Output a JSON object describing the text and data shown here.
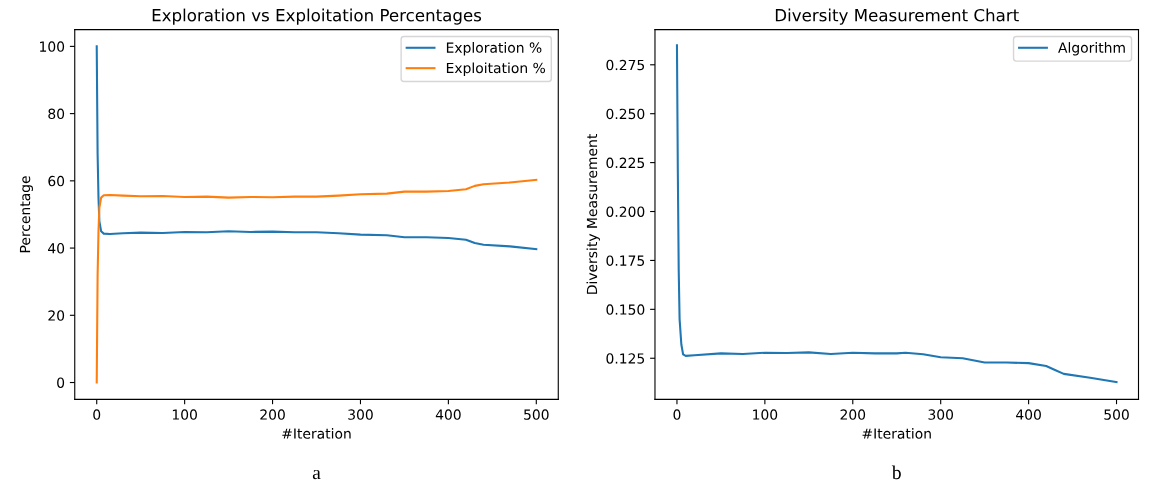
{
  "chart_data": [
    {
      "type": "line",
      "title": "Exploration vs Exploitation Percentages",
      "xlabel": "#Iteration",
      "ylabel": "Percentage",
      "xlim": [
        -25,
        525
      ],
      "xticks": [
        0,
        100,
        200,
        300,
        400,
        500
      ],
      "ylim": [
        -5,
        105
      ],
      "yticks": [
        0,
        20,
        40,
        60,
        80,
        100
      ],
      "grid": false,
      "legend": "top right",
      "annotations": [
        "a"
      ],
      "series": [
        {
          "name": "Exploration %",
          "color": "#1f77b4",
          "x": [
            0,
            1,
            2,
            3,
            5,
            8,
            15,
            30,
            50,
            75,
            100,
            125,
            150,
            175,
            200,
            225,
            250,
            275,
            300,
            330,
            350,
            375,
            400,
            420,
            430,
            440,
            470,
            500
          ],
          "values": [
            100,
            68,
            55,
            48,
            45,
            44.3,
            44.2,
            44.4,
            44.6,
            44.5,
            44.8,
            44.7,
            45,
            44.8,
            44.9,
            44.7,
            44.7,
            44.4,
            44.0,
            43.8,
            43.2,
            43.2,
            43,
            42.5,
            41.5,
            41,
            40.5,
            39.7
          ]
        },
        {
          "name": "Exploitation %",
          "color": "#ff7f0e",
          "x": [
            0,
            1,
            2,
            3,
            5,
            8,
            15,
            30,
            50,
            75,
            100,
            125,
            150,
            175,
            200,
            225,
            250,
            275,
            300,
            330,
            350,
            375,
            400,
            420,
            430,
            440,
            470,
            500
          ],
          "values": [
            0,
            32,
            45,
            52,
            55,
            55.7,
            55.8,
            55.6,
            55.4,
            55.5,
            55.2,
            55.3,
            55,
            55.2,
            55.1,
            55.3,
            55.3,
            55.6,
            56.0,
            56.2,
            56.8,
            56.8,
            57,
            57.5,
            58.5,
            59,
            59.5,
            60.3
          ]
        }
      ]
    },
    {
      "type": "line",
      "title": "Diversity Measurement Chart",
      "xlabel": "#Iteration",
      "ylabel": "Diversity Measurement",
      "xlim": [
        -25,
        525
      ],
      "xticks": [
        0,
        100,
        200,
        300,
        400,
        500
      ],
      "ylim": [
        0.104,
        0.293
      ],
      "yticks": [
        0.125,
        {
          "value": 0.15,
          "label": "0.150"
        },
        0.175,
        {
          "value": 0.2,
          "label": "0.200"
        },
        0.225,
        {
          "value": 0.25,
          "label": "0.250"
        },
        0.275
      ],
      "grid": false,
      "legend": "top right",
      "annotations": [
        "b"
      ],
      "series": [
        {
          "name": "Algorithm",
          "color": "#1f77b4",
          "x": [
            0,
            1,
            2,
            3,
            5,
            7,
            10,
            20,
            50,
            75,
            100,
            125,
            150,
            175,
            200,
            225,
            250,
            260,
            280,
            300,
            325,
            350,
            375,
            400,
            420,
            430,
            440,
            470,
            500
          ],
          "values": [
            0.285,
            0.22,
            0.17,
            0.145,
            0.132,
            0.127,
            0.1262,
            0.1265,
            0.1275,
            0.1272,
            0.1278,
            0.1277,
            0.128,
            0.1272,
            0.1278,
            0.1275,
            0.1275,
            0.1278,
            0.127,
            0.1255,
            0.125,
            0.1228,
            0.1228,
            0.1225,
            0.121,
            0.119,
            0.117,
            0.115,
            0.1128
          ]
        }
      ]
    }
  ]
}
